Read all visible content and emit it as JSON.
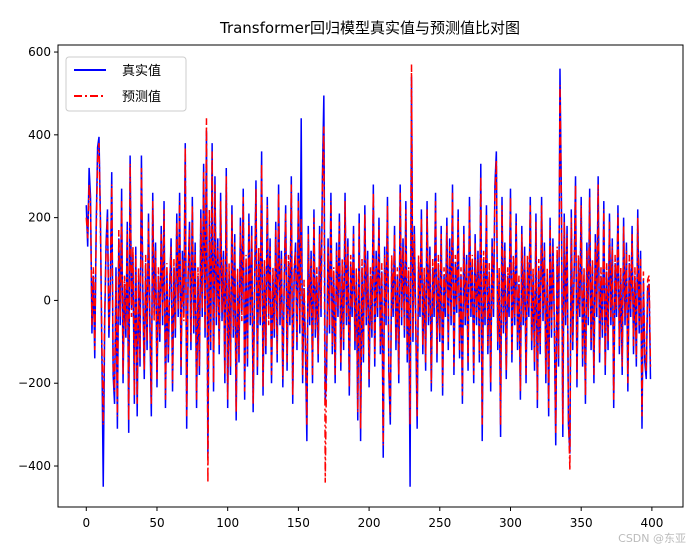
{
  "chart_data": {
    "type": "line",
    "title": "Transformer回归模型真实值与预测值比对图",
    "xlabel": "",
    "ylabel": "",
    "xlim": [
      -20,
      422
    ],
    "ylim": [
      -499,
      617
    ],
    "xticks": [
      0,
      50,
      100,
      150,
      200,
      250,
      300,
      350,
      400
    ],
    "yticks": [
      -400,
      -200,
      0,
      200,
      400,
      600
    ],
    "grid": false,
    "legend": "top-left",
    "series": [
      {
        "name": "真实值",
        "color": "#0000ff",
        "style": "solid",
        "values": [
          230,
          130,
          320,
          250,
          -80,
          60,
          -140,
          180,
          370,
          395,
          200,
          -120,
          -450,
          -60,
          140,
          220,
          -90,
          30,
          310,
          -180,
          -250,
          80,
          -310,
          150,
          -60,
          270,
          -200,
          40,
          -90,
          190,
          -320,
          350,
          -20,
          110,
          -250,
          130,
          -280,
          60,
          -160,
          350,
          20,
          -190,
          90,
          -120,
          210,
          -60,
          -280,
          260,
          -30,
          140,
          -210,
          60,
          -100,
          180,
          -60,
          240,
          -260,
          70,
          -150,
          30,
          150,
          -220,
          80,
          -90,
          210,
          -40,
          260,
          -180,
          120,
          -30,
          380,
          -310,
          50,
          190,
          -120,
          250,
          -80,
          140,
          -260,
          60,
          -180,
          220,
          -40,
          330,
          -90,
          410,
          -380,
          200,
          -120,
          380,
          -220,
          300,
          -60,
          150,
          -130,
          260,
          -50,
          120,
          -200,
          320,
          -260,
          70,
          -180,
          230,
          -90,
          160,
          -290,
          60,
          -150,
          200,
          -30,
          270,
          -240,
          90,
          -160,
          210,
          -60,
          180,
          -270,
          20,
          290,
          -180,
          110,
          -60,
          360,
          -230,
          80,
          -130,
          250,
          -40,
          150,
          -200,
          60,
          -90,
          190,
          -150,
          280,
          -60,
          120,
          -210,
          40,
          230,
          -170,
          90,
          -60,
          300,
          -250,
          60,
          140,
          -120,
          260,
          -80,
          440,
          -200,
          30,
          -120,
          -340,
          180,
          -60,
          120,
          -200,
          220,
          -90,
          60,
          -150,
          180,
          -40,
          300,
          495,
          -250,
          -160,
          150,
          -80,
          260,
          -130,
          60,
          -200,
          140,
          -40,
          210,
          -170,
          80,
          -120,
          260,
          -60,
          150,
          -230,
          90,
          -40,
          180,
          -120,
          60,
          -290,
          210,
          -340,
          80,
          -150,
          230,
          -60,
          120,
          -210,
          60,
          -90,
          280,
          -160,
          120,
          -40,
          200,
          -130,
          70,
          -380,
          130,
          -60,
          250,
          -180,
          -300,
          90,
          -40,
          180,
          -120,
          60,
          -200,
          280,
          -60,
          150,
          -90,
          240,
          -150,
          60,
          -450,
          540,
          -100,
          180,
          -60,
          -310,
          90,
          -40,
          220,
          -130,
          60,
          -170,
          240,
          -60,
          130,
          -220,
          80,
          -40,
          260,
          -150,
          90,
          -100,
          180,
          -230,
          60,
          -40,
          200,
          -120,
          150,
          -60,
          280,
          -180,
          90,
          -30,
          220,
          -140,
          60,
          -250,
          180,
          -60,
          110,
          -170,
          250,
          -40,
          90,
          -200,
          160,
          -60,
          120,
          -150,
          330,
          -340,
          100,
          -60,
          230,
          -130,
          70,
          -220,
          150,
          -40,
          280,
          360,
          -120,
          60,
          -330,
          250,
          -80,
          140,
          -190,
          60,
          -40,
          270,
          -150,
          90,
          -60,
          210,
          -120,
          40,
          -240,
          180,
          -60,
          130,
          -200,
          90,
          -40,
          250,
          -120,
          60,
          -170,
          210,
          -260,
          80,
          -130,
          250,
          -50,
          140,
          -200,
          60,
          -280,
          200,
          -90,
          150,
          -60,
          -350,
          110,
          -160,
          560,
          250,
          -330,
          210,
          -60,
          180,
          -300,
          -370,
          220,
          -120,
          60,
          300,
          -210,
          90,
          -40,
          250,
          -160,
          60,
          -250,
          140,
          -60,
          270,
          -120,
          80,
          -200,
          160,
          -40,
          300,
          -150,
          60,
          -90,
          240,
          -180,
          70,
          -120,
          210,
          -60,
          150,
          -260,
          90,
          -40,
          230,
          -130,
          60,
          -180,
          200,
          -60,
          140,
          -220,
          90,
          -40,
          180,
          -130,
          60,
          -160,
          220,
          -80,
          120,
          -310,
          50,
          -150,
          -190,
          30,
          40,
          -190
        ]
      },
      {
        "name": "预测值",
        "color": "#ff0000",
        "style": "dashdot",
        "values": [
          200,
          150,
          280,
          230,
          -60,
          80,
          -120,
          160,
          340,
          380,
          180,
          -100,
          -300,
          -40,
          120,
          200,
          -70,
          50,
          280,
          -160,
          -220,
          60,
          -280,
          170,
          -40,
          240,
          -180,
          60,
          -70,
          170,
          -290,
          330,
          -40,
          130,
          -230,
          110,
          -250,
          80,
          -140,
          320,
          40,
          -170,
          110,
          -100,
          190,
          -40,
          -250,
          240,
          -50,
          120,
          -190,
          80,
          -80,
          160,
          -40,
          220,
          -240,
          90,
          -130,
          50,
          130,
          -200,
          100,
          -70,
          190,
          -20,
          240,
          -160,
          100,
          -50,
          370,
          -280,
          70,
          170,
          -100,
          230,
          -60,
          120,
          -240,
          80,
          -160,
          200,
          -20,
          310,
          -70,
          440,
          -440,
          220,
          -100,
          360,
          -200,
          280,
          -40,
          130,
          -110,
          240,
          -30,
          100,
          -180,
          300,
          -240,
          90,
          -160,
          210,
          -70,
          140,
          -270,
          80,
          -130,
          180,
          -50,
          250,
          -220,
          110,
          -140,
          190,
          -40,
          160,
          -250,
          40,
          270,
          -160,
          130,
          -40,
          330,
          -210,
          100,
          -110,
          230,
          -60,
          130,
          -180,
          80,
          -70,
          170,
          -130,
          260,
          -40,
          100,
          -190,
          60,
          210,
          -150,
          110,
          -40,
          280,
          -230,
          80,
          120,
          -100,
          240,
          -60,
          200,
          -180,
          50,
          -100,
          -300,
          160,
          -40,
          100,
          -180,
          200,
          -70,
          80,
          -130,
          160,
          -20,
          280,
          420,
          -440,
          -140,
          130,
          -60,
          240,
          -110,
          80,
          -180,
          120,
          -20,
          190,
          -150,
          100,
          -100,
          240,
          -40,
          130,
          -210,
          110,
          -20,
          160,
          -100,
          80,
          -270,
          190,
          -310,
          100,
          -130,
          210,
          -40,
          100,
          -190,
          80,
          -70,
          260,
          -140,
          100,
          -20,
          180,
          -110,
          90,
          -350,
          110,
          -40,
          230,
          -160,
          -280,
          110,
          -20,
          160,
          -100,
          80,
          -180,
          260,
          -40,
          130,
          -70,
          220,
          -130,
          80,
          -300,
          570,
          -80,
          160,
          -40,
          -280,
          110,
          -20,
          200,
          -110,
          80,
          -150,
          220,
          -40,
          110,
          -200,
          100,
          -20,
          240,
          -130,
          110,
          -80,
          160,
          -210,
          80,
          -20,
          180,
          -100,
          130,
          -40,
          260,
          -160,
          110,
          -10,
          200,
          -120,
          80,
          -230,
          160,
          -40,
          90,
          -150,
          230,
          -20,
          110,
          -180,
          140,
          -40,
          100,
          -130,
          300,
          -300,
          120,
          -40,
          210,
          -110,
          90,
          -200,
          130,
          -20,
          260,
          340,
          -100,
          80,
          -300,
          230,
          -60,
          120,
          -170,
          80,
          -20,
          250,
          -130,
          110,
          -40,
          190,
          -100,
          60,
          -220,
          160,
          -40,
          110,
          -180,
          110,
          -20,
          230,
          -100,
          80,
          -150,
          190,
          -240,
          100,
          -110,
          230,
          -30,
          120,
          -180,
          80,
          -260,
          180,
          -70,
          130,
          -40,
          -320,
          130,
          -140,
          520,
          230,
          -300,
          190,
          -40,
          160,
          -280,
          -410,
          200,
          -100,
          80,
          280,
          -190,
          110,
          -20,
          230,
          -140,
          80,
          -230,
          120,
          -40,
          250,
          -100,
          100,
          -180,
          140,
          -20,
          280,
          -130,
          80,
          -70,
          220,
          -160,
          90,
          -100,
          190,
          -40,
          130,
          -240,
          110,
          -20,
          210,
          -110,
          80,
          -160,
          180,
          -40,
          120,
          -200,
          110,
          -20,
          160,
          -110,
          80,
          -140,
          200,
          -60,
          100,
          -280,
          70,
          -130,
          -170,
          50,
          60,
          -160
        ]
      }
    ]
  },
  "watermark": "CSDN @东亚"
}
